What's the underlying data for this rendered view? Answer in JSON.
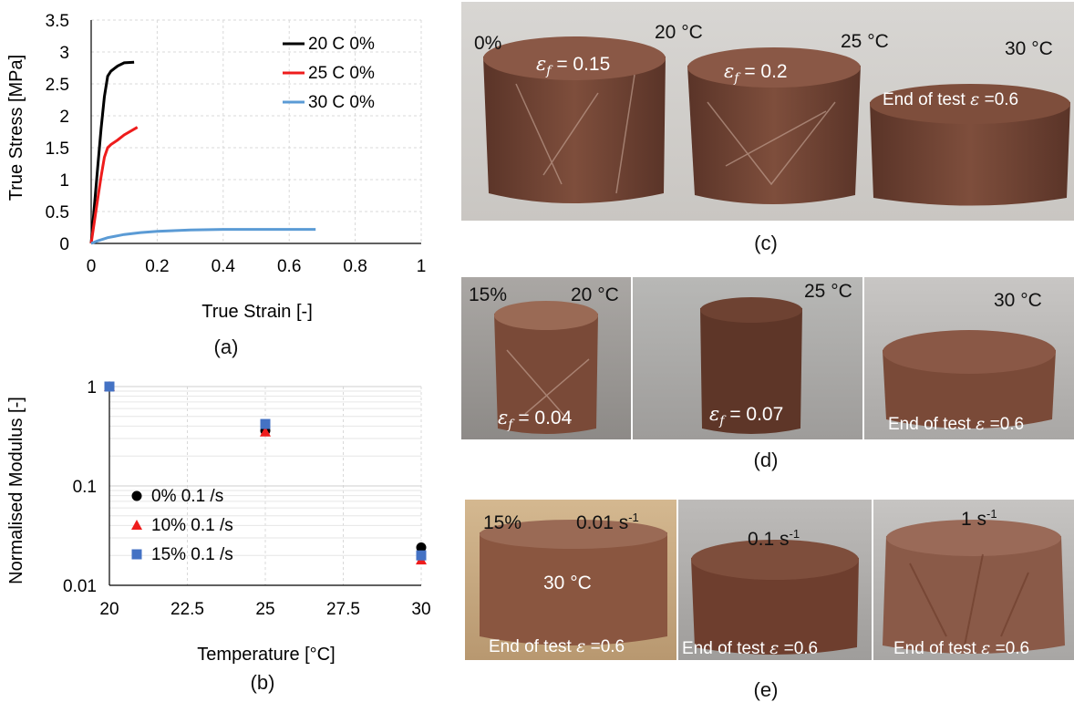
{
  "panel_a": {
    "caption": "(a)",
    "chart_data": {
      "type": "line",
      "xlabel": "True Strain [-]",
      "ylabel": "True Stress [MPa]",
      "xlim": [
        0,
        1
      ],
      "ylim": [
        0,
        3.5
      ],
      "xticks": [
        "0",
        "0.2",
        "0.4",
        "0.6",
        "0.8",
        "1"
      ],
      "yticks": [
        "0",
        "0.5",
        "1",
        "1.5",
        "2",
        "2.5",
        "3",
        "3.5"
      ],
      "grid": true,
      "legend": "top-right",
      "series": [
        {
          "name": "20 C 0%",
          "color": "#000000",
          "x": [
            0,
            0.01,
            0.02,
            0.03,
            0.04,
            0.05,
            0.06,
            0.08,
            0.1,
            0.13
          ],
          "y": [
            0,
            0.6,
            1.2,
            1.8,
            2.3,
            2.62,
            2.7,
            2.78,
            2.83,
            2.84
          ]
        },
        {
          "name": "25 C 0%",
          "color": "#ee1c1c",
          "x": [
            0,
            0.01,
            0.02,
            0.03,
            0.04,
            0.05,
            0.06,
            0.08,
            0.1,
            0.14
          ],
          "y": [
            0,
            0.35,
            0.7,
            1.05,
            1.35,
            1.5,
            1.55,
            1.62,
            1.7,
            1.82
          ]
        },
        {
          "name": "30 C 0%",
          "color": "#5b9bd5",
          "x": [
            0,
            0.02,
            0.05,
            0.1,
            0.15,
            0.2,
            0.3,
            0.4,
            0.5,
            0.6,
            0.68
          ],
          "y": [
            0,
            0.04,
            0.09,
            0.14,
            0.17,
            0.19,
            0.21,
            0.22,
            0.22,
            0.22,
            0.22
          ]
        }
      ]
    }
  },
  "panel_b": {
    "caption": "(b)",
    "chart_data": {
      "type": "scatter",
      "xlabel": "Temperature [°C]",
      "ylabel": "Normalised Modulus [-]",
      "xlim": [
        20,
        30
      ],
      "ylim": [
        0.01,
        1
      ],
      "yscale": "log",
      "xticks": [
        "20",
        "22.5",
        "25",
        "27.5",
        "30"
      ],
      "yticks": [
        "0.01",
        "0.1",
        "1"
      ],
      "grid": true,
      "legend": "bottom-left",
      "series": [
        {
          "name": "0% 0.1 /s",
          "color": "#000000",
          "marker": "circle",
          "x": [
            20,
            25,
            30
          ],
          "y": [
            1,
            0.36,
            0.024
          ]
        },
        {
          "name": "10% 0.1 /s",
          "color": "#ee1c1c",
          "marker": "triangle",
          "x": [
            20,
            25,
            30
          ],
          "y": [
            1,
            0.35,
            0.018
          ]
        },
        {
          "name": "15% 0.1 /s",
          "color": "#4472c4",
          "marker": "square",
          "x": [
            20,
            25,
            30
          ],
          "y": [
            1,
            0.42,
            0.02
          ]
        }
      ]
    }
  },
  "panel_c": {
    "caption": "(c)",
    "labels": {
      "fraction": "0%",
      "t1": "20 °C",
      "t2": "25 °C",
      "t3": "30 °C",
      "eps1": "= 0.15",
      "eps2": "= 0.2",
      "end": "End of test",
      "end_val": "=0.6"
    }
  },
  "panel_d": {
    "caption": "(d)",
    "labels": {
      "fraction": "15%",
      "t1": "20 °C",
      "t2": "25 °C",
      "t3": "30 °C",
      "eps1": "= 0.04",
      "eps2": "= 0.07",
      "end": "End of test",
      "end_val": "=0.6"
    }
  },
  "panel_e": {
    "caption": "(e)",
    "labels": {
      "fraction": "15%",
      "rate1": "0.01 s",
      "rate2": "0.1 s",
      "rate3": "1 s",
      "exp": "-1",
      "temp": "30 °C",
      "end": "End of test",
      "end_val": "=0.6"
    }
  },
  "symbols": {
    "eps": "ε",
    "f": "f"
  },
  "colors": {
    "chocolate_dark": "#5a3428",
    "chocolate": "#7a4a38",
    "chocolate_light": "#9a6a55"
  }
}
